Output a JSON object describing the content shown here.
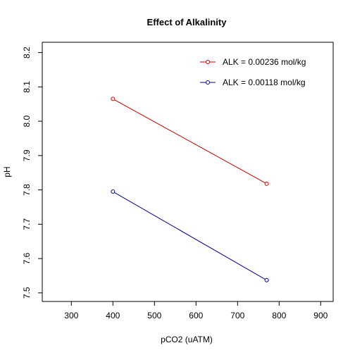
{
  "chart_data": {
    "type": "line",
    "title": "Effect of Alkalinity",
    "xlabel": "pCO2 (uATM)",
    "ylabel": "pH",
    "xlim": [
      230,
      930
    ],
    "ylim": [
      7.475,
      8.23
    ],
    "x_ticks": [
      "300",
      "400",
      "500",
      "600",
      "700",
      "800",
      "900"
    ],
    "y_ticks": [
      "7.5",
      "7.6",
      "7.7",
      "7.8",
      "7.9",
      "8.0",
      "8.1",
      "8.2"
    ],
    "grid": false,
    "legend_position": "top-right",
    "series": [
      {
        "name": "ALK = 0.00236 mol/kg",
        "color": "#cc0000",
        "x": [
          400,
          770
        ],
        "y": [
          8.065,
          7.818
        ]
      },
      {
        "name": "ALK = 0.00118 mol/kg",
        "color": "#00008b",
        "x": [
          400,
          770
        ],
        "y": [
          7.795,
          7.537
        ]
      }
    ]
  }
}
